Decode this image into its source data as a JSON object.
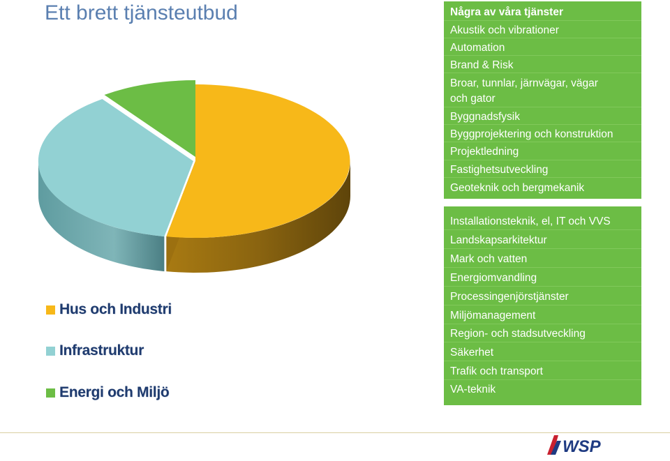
{
  "title": "Ett brett tjänsteutbud",
  "chart_data": {
    "type": "pie",
    "style": "3d-exploded",
    "slices": [
      {
        "name": "Hus och Industri",
        "value": 53,
        "color": "#f7b819"
      },
      {
        "name": "Infrastruktur",
        "value": 37,
        "color": "#92d1d3"
      },
      {
        "name": "Energi och Miljö",
        "value": 10,
        "color": "#6cbd45"
      }
    ],
    "legend": [
      "Hus och Industri",
      "Infrastruktur",
      "Energi och Miljö"
    ],
    "legend_position": "bottom-left"
  },
  "services_top": {
    "heading": "Några av våra tjänster",
    "items": [
      "Akustik och vibrationer",
      "Automation",
      "Brand & Risk",
      "Broar, tunnlar, järnvägar, vägar",
      "och gator",
      "Byggnadsfysik",
      "Byggprojektering och konstruktion",
      "Projektledning",
      "Fastighetsutveckling",
      "Geoteknik och bergmekanik"
    ]
  },
  "services_bottom": {
    "items": [
      "Installationsteknik, el, IT och VVS",
      "Landskapsarkitektur",
      "Mark och vatten",
      "Energiomvandling",
      "Processingenjörstjänster",
      "Miljömanagement",
      "Region- och stadsutveckling",
      "Säkerhet",
      "Trafik och transport",
      "VA-teknik"
    ]
  },
  "logo": {
    "text": "WSP",
    "icon": "wsp-logo-icon"
  },
  "colors": {
    "panel": "#6cbd45",
    "title": "#5a7fb0",
    "legend_text": "#1f3b6e"
  }
}
